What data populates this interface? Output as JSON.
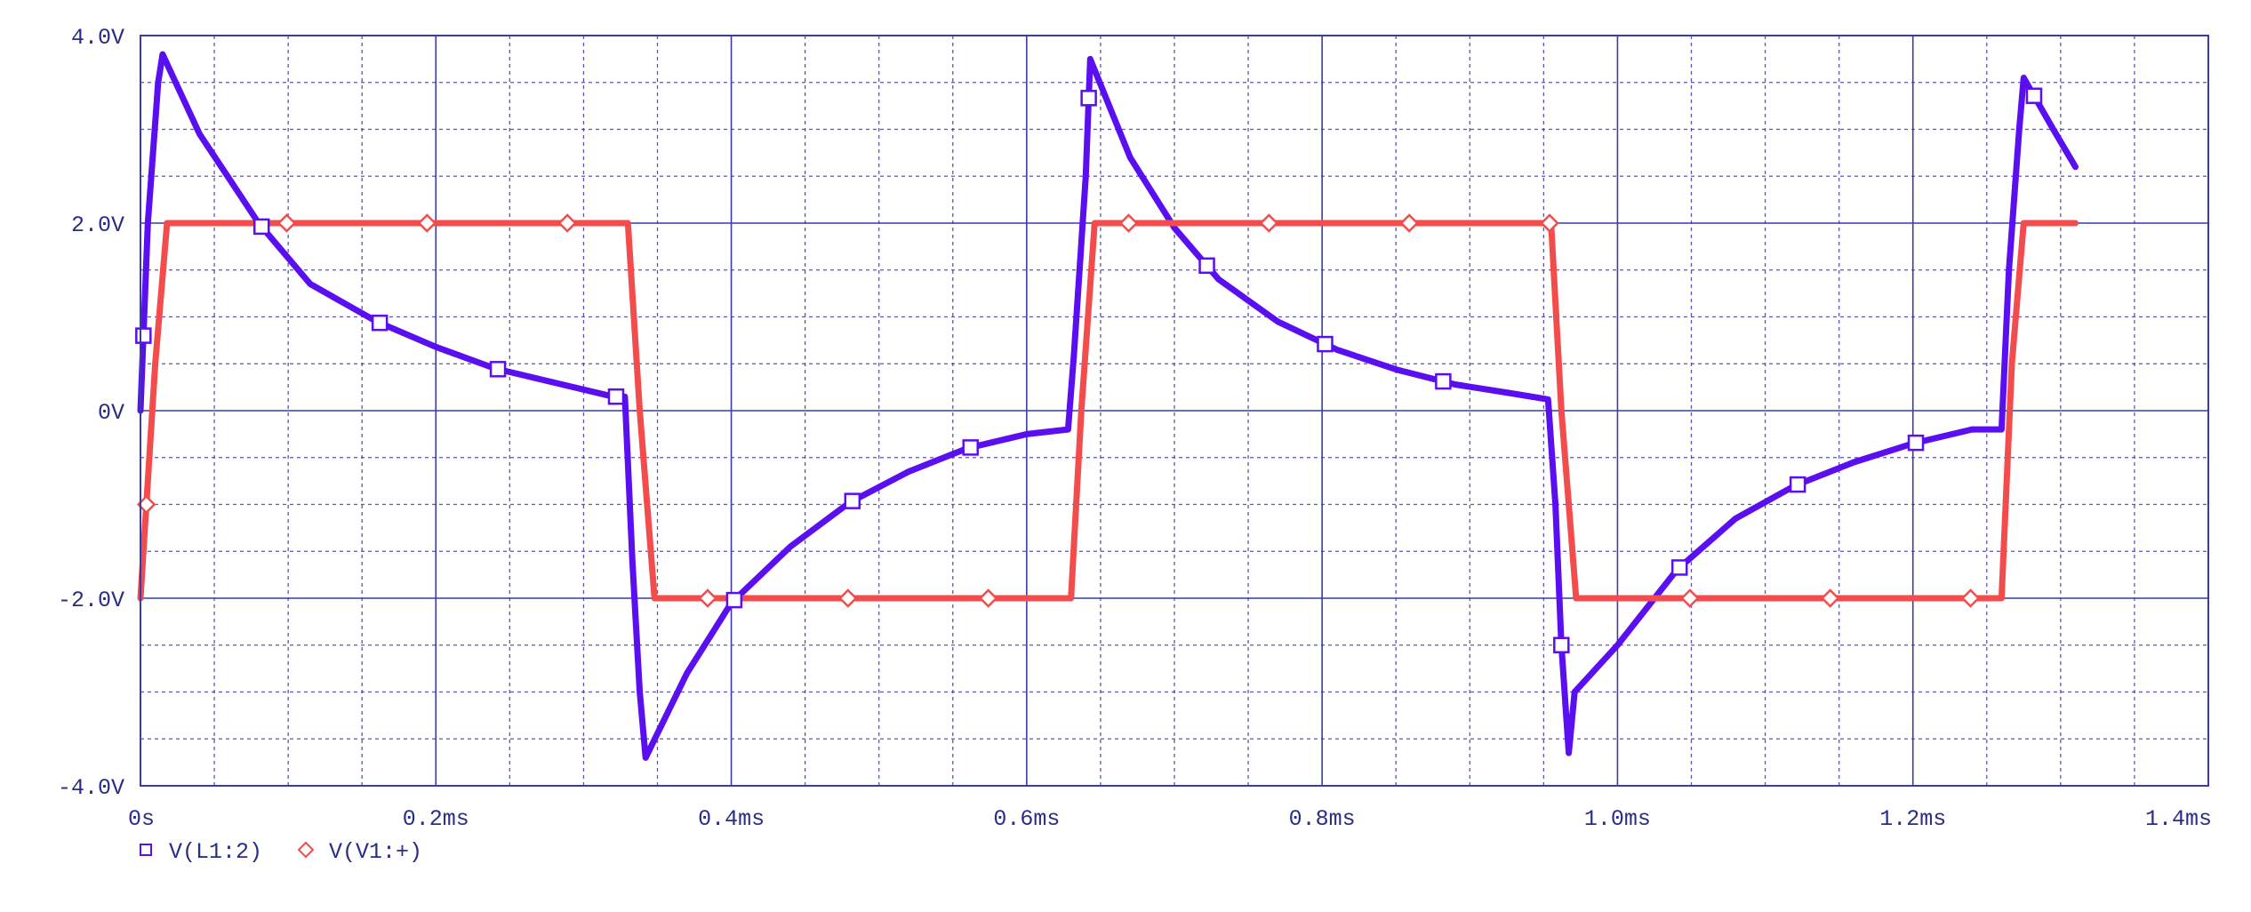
{
  "chart_data": {
    "type": "line",
    "xlim": [
      0,
      1.4
    ],
    "ylim": [
      -4.0,
      4.0
    ],
    "x_ticks": [
      {
        "value": 0,
        "label": "0s"
      },
      {
        "value": 0.2,
        "label": "0.2ms"
      },
      {
        "value": 0.4,
        "label": "0.4ms"
      },
      {
        "value": 0.6,
        "label": "0.6ms"
      },
      {
        "value": 0.8,
        "label": "0.8ms"
      },
      {
        "value": 1.0,
        "label": "1.0ms"
      },
      {
        "value": 1.2,
        "label": "1.2ms"
      },
      {
        "value": 1.4,
        "label": "1.4ms"
      }
    ],
    "y_ticks": [
      {
        "value": 4,
        "label": "4.0V"
      },
      {
        "value": 2,
        "label": "2.0V"
      },
      {
        "value": 0,
        "label": "0V"
      },
      {
        "value": -2,
        "label": "-2.0V"
      },
      {
        "value": -4,
        "label": "-4.0V"
      }
    ],
    "grid": true,
    "legend_position": "bottom-left",
    "series": [
      {
        "name": "V(L1:2)",
        "color": "#5a0ff0",
        "marker": "square",
        "x": [
          0.0,
          0.005,
          0.012,
          0.015,
          0.04,
          0.08,
          0.115,
          0.16,
          0.2,
          0.24,
          0.28,
          0.32,
          0.328,
          0.333,
          0.338,
          0.342,
          0.37,
          0.4,
          0.44,
          0.48,
          0.52,
          0.56,
          0.6,
          0.628,
          0.632,
          0.64,
          0.643,
          0.67,
          0.7,
          0.73,
          0.77,
          0.81,
          0.85,
          0.89,
          0.93,
          0.953,
          0.958,
          0.962,
          0.967,
          0.971,
          1.0,
          1.04,
          1.08,
          1.12,
          1.16,
          1.2,
          1.24,
          1.26,
          1.265,
          1.272,
          1.275,
          1.295,
          1.31
        ],
        "y": [
          0.0,
          2.0,
          3.5,
          3.8,
          2.95,
          2.0,
          1.35,
          0.95,
          0.68,
          0.45,
          0.3,
          0.15,
          0.15,
          -1.6,
          -3.0,
          -3.7,
          -2.8,
          -2.05,
          -1.45,
          -0.98,
          -0.65,
          -0.4,
          -0.25,
          -0.2,
          0.6,
          2.5,
          3.75,
          2.7,
          1.95,
          1.4,
          0.95,
          0.65,
          0.44,
          0.28,
          0.18,
          0.12,
          -1.0,
          -2.5,
          -3.65,
          -3.0,
          -2.5,
          -1.7,
          -1.15,
          -0.8,
          -0.55,
          -0.35,
          -0.2,
          -0.2,
          1.5,
          3.0,
          3.55,
          3.0,
          2.6
        ]
      },
      {
        "name": "V(V1:+)",
        "color": "#f24c4c",
        "marker": "diamond",
        "x": [
          0.0,
          0.01,
          0.018,
          0.33,
          0.338,
          0.348,
          0.63,
          0.637,
          0.646,
          0.955,
          0.962,
          0.972,
          1.26,
          1.267,
          1.275,
          1.31
        ],
        "y": [
          -2.0,
          0.5,
          2.0,
          2.0,
          0.0,
          -2.0,
          -2.0,
          0.0,
          2.0,
          2.0,
          0.0,
          -2.0,
          -2.0,
          0.5,
          2.0,
          2.0
        ]
      }
    ]
  }
}
